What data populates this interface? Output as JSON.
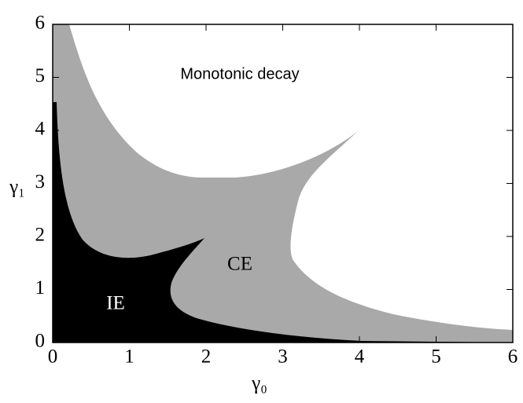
{
  "chart_data": {
    "type": "phase",
    "x_label": "γ₀",
    "y_label": "γ₁",
    "xlim": [
      0,
      6
    ],
    "ylim": [
      0,
      6
    ],
    "xticks": [
      0,
      1,
      2,
      3,
      4,
      5,
      6
    ],
    "yticks": [
      0,
      1,
      2,
      3,
      4,
      5,
      6
    ],
    "annotations": [
      "Monotonic decay",
      "CE",
      "IE"
    ]
  }
}
